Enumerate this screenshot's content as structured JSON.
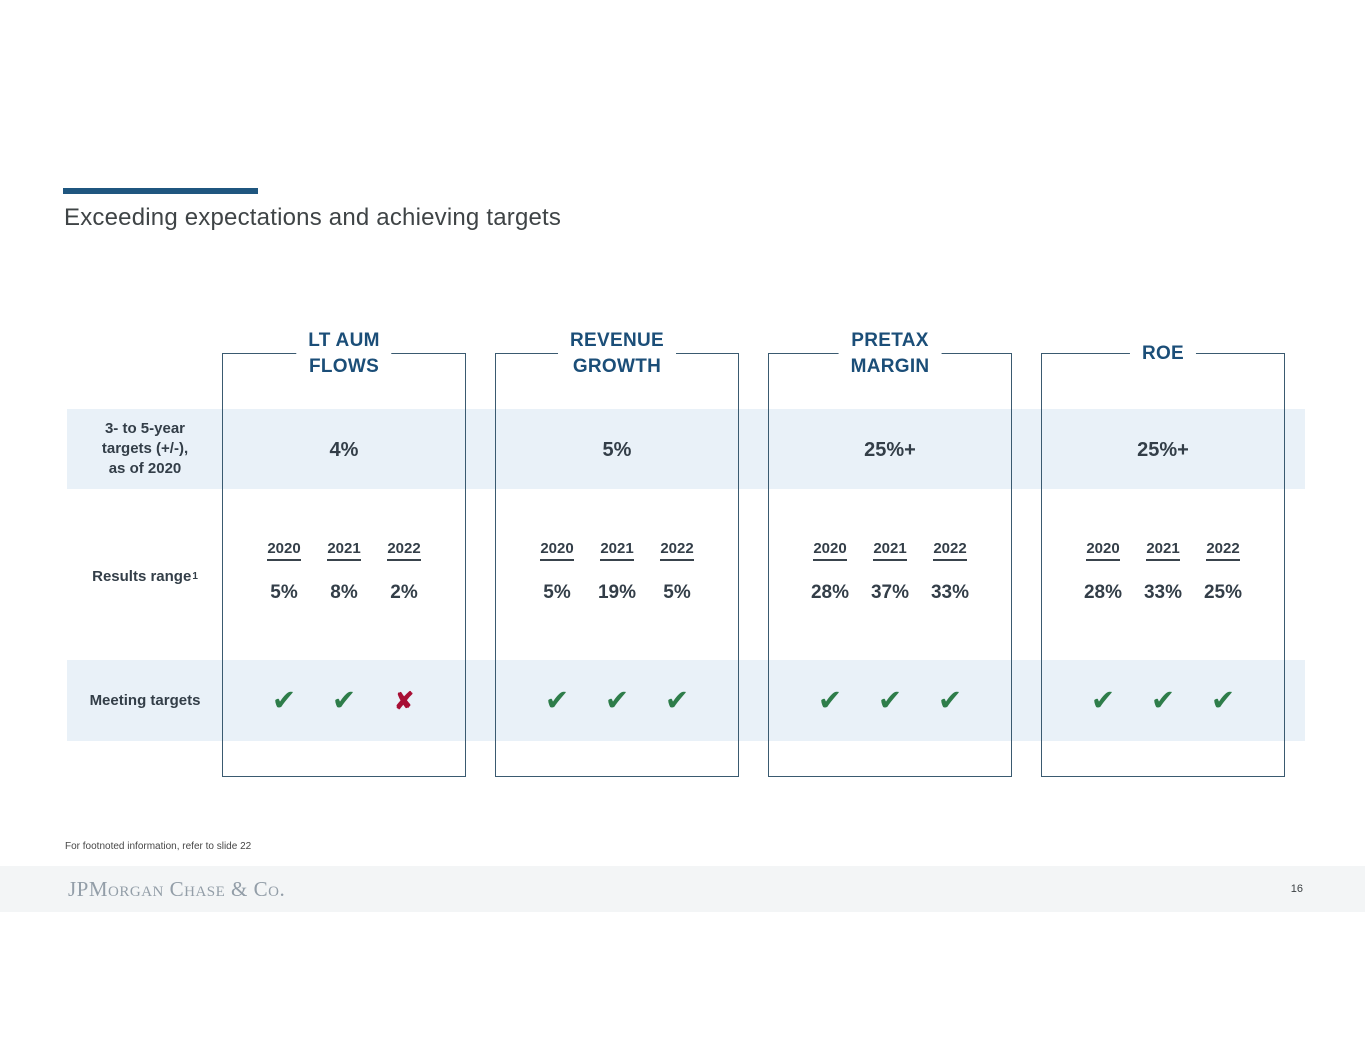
{
  "title": "Exceeding expectations and achieving targets",
  "colors": {
    "accent": "#1f567f",
    "navy_header": "#1b4e78",
    "band": "#e9f1f8",
    "charcoal_text": "#333e48",
    "check_green": "#2e7d4a",
    "cross_red": "#a80f35"
  },
  "row_labels": {
    "targets": "3- to 5-year\ntargets (+/-),\nas of 2020",
    "results": "Results range",
    "results_footnote_marker": "1",
    "meeting": "Meeting targets"
  },
  "columns": [
    {
      "header": "LT AUM\nFLOWS",
      "target": "4%",
      "years": [
        "2020",
        "2021",
        "2022"
      ],
      "results": [
        "5%",
        "8%",
        "2%"
      ],
      "meets": [
        true,
        true,
        false
      ]
    },
    {
      "header": "REVENUE\nGROWTH",
      "target": "5%",
      "years": [
        "2020",
        "2021",
        "2022"
      ],
      "results": [
        "5%",
        "19%",
        "5%"
      ],
      "meets": [
        true,
        true,
        true
      ]
    },
    {
      "header": "PRETAX\nMARGIN",
      "target": "25%+",
      "years": [
        "2020",
        "2021",
        "2022"
      ],
      "results": [
        "28%",
        "37%",
        "33%"
      ],
      "meets": [
        true,
        true,
        true
      ]
    },
    {
      "header": "ROE",
      "target": "25%+",
      "years": [
        "2020",
        "2021",
        "2022"
      ],
      "results": [
        "28%",
        "33%",
        "25%"
      ],
      "meets": [
        true,
        true,
        true
      ]
    }
  ],
  "icons": {
    "check": "✔",
    "cross": "✘"
  },
  "footnote": "For footnoted information, refer to slide 22",
  "footer": {
    "logo": "JPMorgan Chase & Co.",
    "page_number": "16"
  }
}
